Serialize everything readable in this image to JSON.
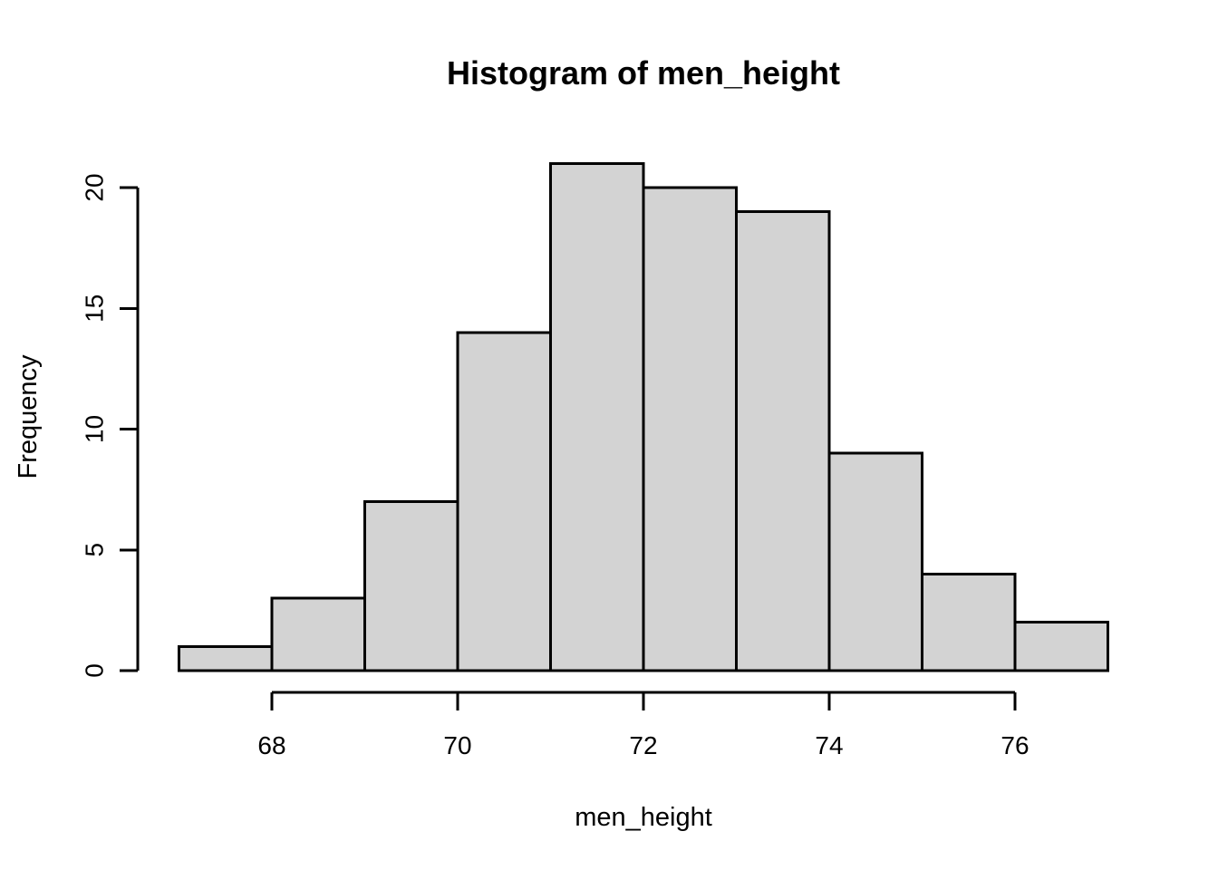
{
  "figure": {
    "title": "Histogram of men_height",
    "xlabel": "men_height",
    "ylabel": "Frequency"
  },
  "chart_data": {
    "type": "bar",
    "subtype": "histogram",
    "title": "Histogram of men_height",
    "xlabel": "men_height",
    "ylabel": "Frequency",
    "bin_edges": [
      67,
      68,
      69,
      70,
      71,
      72,
      73,
      74,
      75,
      76,
      77
    ],
    "counts": [
      1,
      3,
      7,
      14,
      21,
      20,
      19,
      9,
      4,
      2
    ],
    "x_ticks": [
      68,
      70,
      72,
      74,
      76
    ],
    "y_ticks": [
      0,
      5,
      10,
      15,
      20
    ],
    "xlim": [
      67,
      77
    ],
    "ylim": [
      0,
      21
    ],
    "grid": "off",
    "legend": "none",
    "bar_fill": "#d3d3d3",
    "bar_stroke": "#000000",
    "axis_color": "#000000",
    "text_color": "#000000",
    "background": "#ffffff"
  }
}
